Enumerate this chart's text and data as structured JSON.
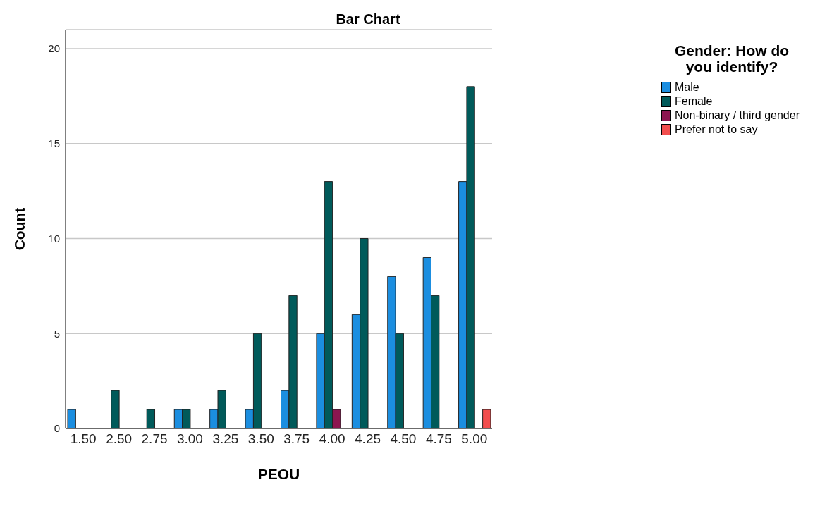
{
  "chart_data": {
    "type": "bar",
    "title": "Bar Chart",
    "xlabel": "PEOU",
    "ylabel": "Count",
    "legend_title": "Gender: How do you identify?",
    "categories": [
      "1.50",
      "2.50",
      "2.75",
      "3.00",
      "3.25",
      "3.50",
      "3.75",
      "4.00",
      "4.25",
      "4.50",
      "4.75",
      "5.00"
    ],
    "series": [
      {
        "name": "Male",
        "color": "#1b8ee0",
        "values": [
          1,
          null,
          null,
          1,
          1,
          1,
          2,
          5,
          6,
          8,
          9,
          13
        ]
      },
      {
        "name": "Female",
        "color": "#005a5a",
        "values": [
          null,
          2,
          1,
          1,
          2,
          5,
          7,
          13,
          10,
          5,
          7,
          18
        ]
      },
      {
        "name": "Non-binary / third gender",
        "color": "#8c1650",
        "values": [
          null,
          null,
          null,
          null,
          null,
          null,
          null,
          1,
          null,
          null,
          null,
          null
        ]
      },
      {
        "name": "Prefer not to say",
        "color": "#f24e4e",
        "values": [
          null,
          null,
          null,
          null,
          null,
          null,
          null,
          null,
          null,
          null,
          null,
          1
        ]
      }
    ],
    "ylim": [
      0,
      21
    ],
    "yticks": [
      0,
      5,
      10,
      15,
      20
    ],
    "grid": "y",
    "legend": "top right"
  }
}
